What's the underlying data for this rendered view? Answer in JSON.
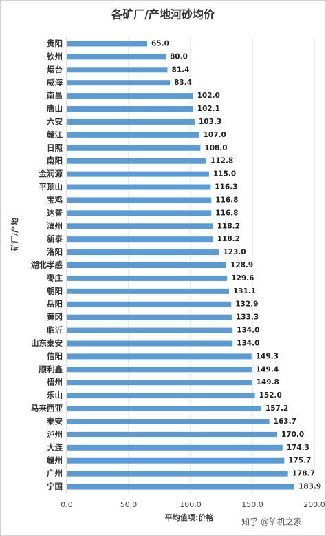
{
  "chart_data": {
    "type": "hbar",
    "title": "各矿厂/产地河砂均价",
    "x_label": "平均值项:价格",
    "y_label": "矿厂/产地",
    "watermark": "知乎 @矿机之家",
    "categories": [
      "贵阳",
      "钦州",
      "烟台",
      "威海",
      "南昌",
      "唐山",
      "六安",
      "赣江",
      "日照",
      "南阳",
      "金润源",
      "平顶山",
      "宝鸡",
      "达普",
      "滨州",
      "新泰",
      "洛阳",
      "湖北孝感",
      "枣庄",
      "朝阳",
      "岳阳",
      "黄冈",
      "临沂",
      "山东泰安",
      "信阳",
      "顺利鑫",
      "梧州",
      "乐山",
      "马来西亚",
      "泰安",
      "泸州",
      "大连",
      "赣州",
      "广州",
      "宁国"
    ],
    "values": [
      65.0,
      80.0,
      81.4,
      83.4,
      102.0,
      102.1,
      103.3,
      107.0,
      108.0,
      112.8,
      115.0,
      116.3,
      116.8,
      116.8,
      118.2,
      118.2,
      123.0,
      128.9,
      129.6,
      131.1,
      132.9,
      133.3,
      134.0,
      134.0,
      149.3,
      149.4,
      149.8,
      152.0,
      157.2,
      163.7,
      170.0,
      174.3,
      175.7,
      178.7,
      183.9
    ],
    "value_labels": [
      "65.0",
      "80.0",
      "81.4",
      "83.4",
      "102.0",
      "102.1",
      "103.3",
      "107.0",
      "108.0",
      "112.8",
      "115.0",
      "116.3",
      "116.8",
      "116.8",
      "118.2",
      "118.2",
      "123.0",
      "128.9",
      "129.6",
      "131.1",
      "132.9",
      "133.3",
      "134.0",
      "134.0",
      "149.3",
      "149.4",
      "149.8",
      "152.0",
      "157.2",
      "163.7",
      "170.0",
      "174.3",
      "175.7",
      "178.7",
      "183.9"
    ],
    "color": "#5b9bd5",
    "xlim": [
      0,
      200
    ],
    "xticks": [
      {
        "value": 0,
        "label": "0.0"
      },
      {
        "value": 50,
        "label": "50.0"
      },
      {
        "value": 100,
        "label": "100.0"
      },
      {
        "value": 150,
        "label": "150.0"
      },
      {
        "value": 200,
        "label": "200.0"
      }
    ],
    "grid": true
  }
}
